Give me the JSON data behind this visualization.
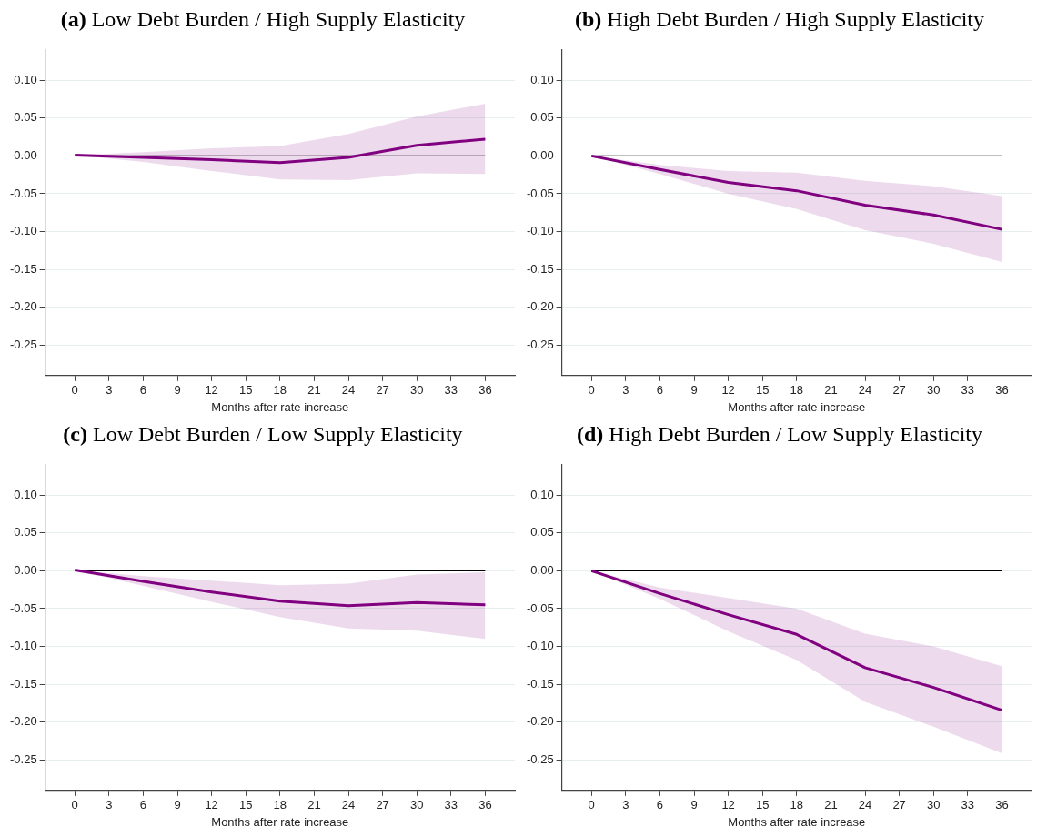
{
  "chart_data": [
    {
      "type": "line",
      "title": "(a) Low Debt Burden / High Supply Elasticity",
      "xlabel": "Months after rate increase",
      "x": [
        0,
        6,
        12,
        18,
        24,
        30,
        36
      ],
      "series": [
        {
          "color": "#800080",
          "values": [
            0.001,
            -0.002,
            -0.005,
            -0.009,
            -0.002,
            0.014,
            0.022
          ],
          "lower": [
            0.001,
            -0.008,
            -0.02,
            -0.031,
            -0.032,
            -0.023,
            -0.024
          ],
          "upper": [
            0.001,
            0.005,
            0.01,
            0.013,
            0.029,
            0.052,
            0.069
          ]
        }
      ],
      "xlim": [
        -2.6,
        38.6
      ],
      "ylim": [
        -0.29,
        0.14
      ],
      "xticks": [
        0,
        3,
        6,
        9,
        12,
        15,
        18,
        21,
        24,
        27,
        30,
        33,
        36
      ],
      "yticks": [
        {
          "value": -0.25,
          "label": "-0.25"
        },
        {
          "value": -0.2,
          "label": "-0.20"
        },
        {
          "value": -0.15,
          "label": "-0.15"
        },
        {
          "value": -0.1,
          "label": "-0.10"
        },
        {
          "value": -0.05,
          "label": "-0.05"
        },
        {
          "value": 0,
          "label": "0.00"
        },
        {
          "value": 0.05,
          "label": "0.05"
        },
        {
          "value": 0.1,
          "label": "0.10"
        }
      ],
      "ref_lines": [
        {
          "axis": "y",
          "value": 0,
          "color": "#000000"
        }
      ],
      "grid": "y",
      "legend": false
    },
    {
      "type": "line",
      "title": "(b) High Debt Burden / High Supply Elasticity",
      "xlabel": "Months after rate increase",
      "x": [
        0,
        6,
        12,
        18,
        24,
        30,
        36
      ],
      "series": [
        {
          "color": "#800080",
          "values": [
            0,
            -0.018,
            -0.035,
            -0.046,
            -0.065,
            -0.078,
            -0.097
          ],
          "lower": [
            0,
            -0.024,
            -0.05,
            -0.07,
            -0.098,
            -0.116,
            -0.14
          ],
          "upper": [
            0,
            -0.012,
            -0.02,
            -0.022,
            -0.033,
            -0.04,
            -0.053
          ]
        }
      ],
      "xlim": [
        -2.6,
        38.6
      ],
      "ylim": [
        -0.29,
        0.14
      ],
      "xticks": [
        0,
        3,
        6,
        9,
        12,
        15,
        18,
        21,
        24,
        27,
        30,
        33,
        36
      ],
      "yticks": [
        {
          "value": -0.25,
          "label": "-0.25"
        },
        {
          "value": -0.2,
          "label": "-0.20"
        },
        {
          "value": -0.15,
          "label": "-0.15"
        },
        {
          "value": -0.1,
          "label": "-0.10"
        },
        {
          "value": -0.05,
          "label": "-0.05"
        },
        {
          "value": 0,
          "label": "0.00"
        },
        {
          "value": 0.05,
          "label": "0.05"
        },
        {
          "value": 0.1,
          "label": "0.10"
        }
      ],
      "ref_lines": [
        {
          "axis": "y",
          "value": 0,
          "color": "#000000"
        }
      ],
      "grid": "y",
      "legend": false
    },
    {
      "type": "line",
      "title": "(c) Low Debt Burden / Low Supply Elasticity",
      "xlabel": "Months after rate increase",
      "x": [
        0,
        6,
        12,
        18,
        24,
        30,
        36
      ],
      "series": [
        {
          "color": "#800080",
          "values": [
            0.001,
            -0.014,
            -0.028,
            -0.04,
            -0.046,
            -0.042,
            -0.045
          ],
          "lower": [
            0.001,
            -0.02,
            -0.041,
            -0.061,
            -0.076,
            -0.079,
            -0.09
          ],
          "upper": [
            0.001,
            -0.007,
            -0.013,
            -0.019,
            -0.017,
            -0.005,
            -0.002
          ]
        }
      ],
      "xlim": [
        -2.6,
        38.6
      ],
      "ylim": [
        -0.29,
        0.14
      ],
      "xticks": [
        0,
        3,
        6,
        9,
        12,
        15,
        18,
        21,
        24,
        27,
        30,
        33,
        36
      ],
      "yticks": [
        {
          "value": -0.25,
          "label": "-0.25"
        },
        {
          "value": -0.2,
          "label": "-0.20"
        },
        {
          "value": -0.15,
          "label": "-0.15"
        },
        {
          "value": -0.1,
          "label": "-0.10"
        },
        {
          "value": -0.05,
          "label": "-0.05"
        },
        {
          "value": 0,
          "label": "0.00"
        },
        {
          "value": 0.05,
          "label": "0.05"
        },
        {
          "value": 0.1,
          "label": "0.10"
        }
      ],
      "ref_lines": [
        {
          "axis": "y",
          "value": 0,
          "color": "#000000"
        }
      ],
      "grid": "y",
      "legend": false
    },
    {
      "type": "line",
      "title": "(d) High Debt Burden / Low Supply Elasticity",
      "xlabel": "Months after rate increase",
      "x": [
        0,
        6,
        12,
        18,
        24,
        30,
        36
      ],
      "series": [
        {
          "color": "#800080",
          "values": [
            0,
            -0.03,
            -0.058,
            -0.084,
            -0.128,
            -0.154,
            -0.184
          ],
          "lower": [
            0,
            -0.037,
            -0.08,
            -0.118,
            -0.173,
            -0.206,
            -0.241
          ],
          "upper": [
            0,
            -0.022,
            -0.036,
            -0.05,
            -0.083,
            -0.1,
            -0.126
          ]
        }
      ],
      "xlim": [
        -2.6,
        38.6
      ],
      "ylim": [
        -0.29,
        0.14
      ],
      "xticks": [
        0,
        3,
        6,
        9,
        12,
        15,
        18,
        21,
        24,
        27,
        30,
        33,
        36
      ],
      "yticks": [
        {
          "value": -0.25,
          "label": "-0.25"
        },
        {
          "value": -0.2,
          "label": "-0.20"
        },
        {
          "value": -0.15,
          "label": "-0.15"
        },
        {
          "value": -0.1,
          "label": "-0.10"
        },
        {
          "value": -0.05,
          "label": "-0.05"
        },
        {
          "value": 0,
          "label": "0.00"
        },
        {
          "value": 0.05,
          "label": "0.05"
        },
        {
          "value": 0.1,
          "label": "0.10"
        }
      ],
      "ref_lines": [
        {
          "axis": "y",
          "value": 0,
          "color": "#000000"
        }
      ],
      "grid": "y",
      "legend": false
    }
  ]
}
